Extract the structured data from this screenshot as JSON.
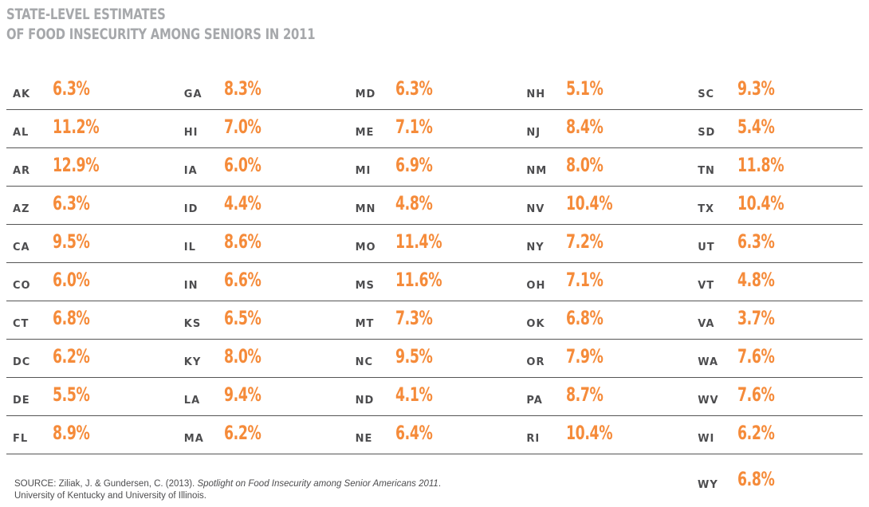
{
  "title": {
    "line1": "STATE-LEVEL ESTIMATES",
    "line2": "OF FOOD INSECURITY AMONG SENIORS IN 2011"
  },
  "colors": {
    "title": "#a6a8ab",
    "value": "#f58b3a",
    "abbr": "#4d4d4f",
    "rule": "#555555"
  },
  "rows": [
    [
      {
        "state": "AK",
        "value": "6.3%"
      },
      {
        "state": "GA",
        "value": "8.3%"
      },
      {
        "state": "MD",
        "value": "6.3%"
      },
      {
        "state": "NH",
        "value": "5.1%"
      },
      {
        "state": "SC",
        "value": "9.3%"
      }
    ],
    [
      {
        "state": "AL",
        "value": "11.2%"
      },
      {
        "state": "HI",
        "value": "7.0%"
      },
      {
        "state": "ME",
        "value": "7.1%"
      },
      {
        "state": "NJ",
        "value": "8.4%"
      },
      {
        "state": "SD",
        "value": "5.4%"
      }
    ],
    [
      {
        "state": "AR",
        "value": "12.9%"
      },
      {
        "state": "IA",
        "value": "6.0%"
      },
      {
        "state": "MI",
        "value": "6.9%"
      },
      {
        "state": "NM",
        "value": "8.0%"
      },
      {
        "state": "TN",
        "value": "11.8%"
      }
    ],
    [
      {
        "state": "AZ",
        "value": "6.3%"
      },
      {
        "state": "ID",
        "value": "4.4%"
      },
      {
        "state": "MN",
        "value": "4.8%"
      },
      {
        "state": "NV",
        "value": "10.4%"
      },
      {
        "state": "TX",
        "value": "10.4%"
      }
    ],
    [
      {
        "state": "CA",
        "value": "9.5%"
      },
      {
        "state": "IL",
        "value": "8.6%"
      },
      {
        "state": "MO",
        "value": "11.4%"
      },
      {
        "state": "NY",
        "value": "7.2%"
      },
      {
        "state": "UT",
        "value": "6.3%"
      }
    ],
    [
      {
        "state": "CO",
        "value": "6.0%"
      },
      {
        "state": "IN",
        "value": "6.6%"
      },
      {
        "state": "MS",
        "value": "11.6%"
      },
      {
        "state": "OH",
        "value": "7.1%"
      },
      {
        "state": "VT",
        "value": "4.8%"
      }
    ],
    [
      {
        "state": "CT",
        "value": "6.8%"
      },
      {
        "state": "KS",
        "value": "6.5%"
      },
      {
        "state": "MT",
        "value": "7.3%"
      },
      {
        "state": "OK",
        "value": "6.8%"
      },
      {
        "state": "VA",
        "value": "3.7%"
      }
    ],
    [
      {
        "state": "DC",
        "value": "6.2%"
      },
      {
        "state": "KY",
        "value": "8.0%"
      },
      {
        "state": "NC",
        "value": "9.5%"
      },
      {
        "state": "OR",
        "value": "7.9%"
      },
      {
        "state": "WA",
        "value": "7.6%"
      }
    ],
    [
      {
        "state": "DE",
        "value": "5.5%"
      },
      {
        "state": "LA",
        "value": "9.4%"
      },
      {
        "state": "ND",
        "value": "4.1%"
      },
      {
        "state": "PA",
        "value": "8.7%"
      },
      {
        "state": "WV",
        "value": "7.6%"
      }
    ],
    [
      {
        "state": "FL",
        "value": "8.9%"
      },
      {
        "state": "MA",
        "value": "6.2%"
      },
      {
        "state": "NE",
        "value": "6.4%"
      },
      {
        "state": "RI",
        "value": "10.4%"
      },
      {
        "state": "WI",
        "value": "6.2%"
      }
    ]
  ],
  "extra": {
    "state": "WY",
    "value": "6.8%"
  },
  "source": {
    "prefix": "SOURCE: Ziliak, J. & Gundersen, C. (2013). ",
    "italic": "Spotlight on Food Insecurity among Senior Americans 2011",
    "suffix": ".",
    "line2": "University of Kentucky and University of Illinois."
  }
}
